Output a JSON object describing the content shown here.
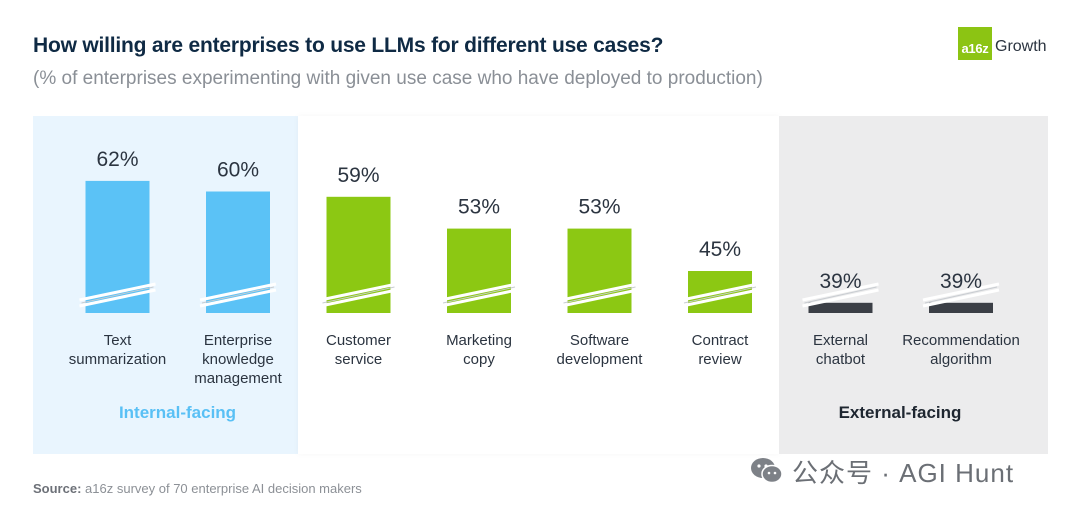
{
  "header": {
    "title": "How willing are enterprises to use LLMs for different use cases?",
    "subtitle": "(% of enterprises experimenting with given use case who have deployed to production)"
  },
  "logo": {
    "badge": "a16z",
    "text": "Growth"
  },
  "groups": {
    "internal": "Internal-facing",
    "external": "External-facing"
  },
  "source": {
    "label": "Source:",
    "text": "a16z survey of 70 enterprise AI decision makers"
  },
  "watermark": {
    "text": "公众号 · AGI Hunt"
  },
  "colors": {
    "internal": "#5bc2f6",
    "middle": "#8cc813",
    "external": "#3b3f46"
  },
  "chart_data": {
    "type": "bar",
    "title": "How willing are enterprises to use LLMs for different use cases?",
    "ylabel": "",
    "ylim": [
      0,
      70
    ],
    "axis_break": true,
    "categories": [
      [
        "Text",
        "summarization"
      ],
      [
        "Enterprise",
        "knowledge",
        "management"
      ],
      [
        "Customer",
        "service"
      ],
      [
        "Marketing",
        "copy"
      ],
      [
        "Software",
        "development"
      ],
      [
        "Contract",
        "review"
      ],
      [
        "External",
        "chatbot"
      ],
      [
        "Recommendation",
        "algorithm"
      ]
    ],
    "values": [
      62,
      60,
      59,
      53,
      53,
      45,
      39,
      39
    ],
    "value_labels": [
      "62%",
      "60%",
      "59%",
      "53%",
      "53%",
      "45%",
      "39%",
      "39%"
    ],
    "groups": [
      "internal",
      "internal",
      "middle",
      "middle",
      "middle",
      "middle",
      "external",
      "external"
    ]
  }
}
